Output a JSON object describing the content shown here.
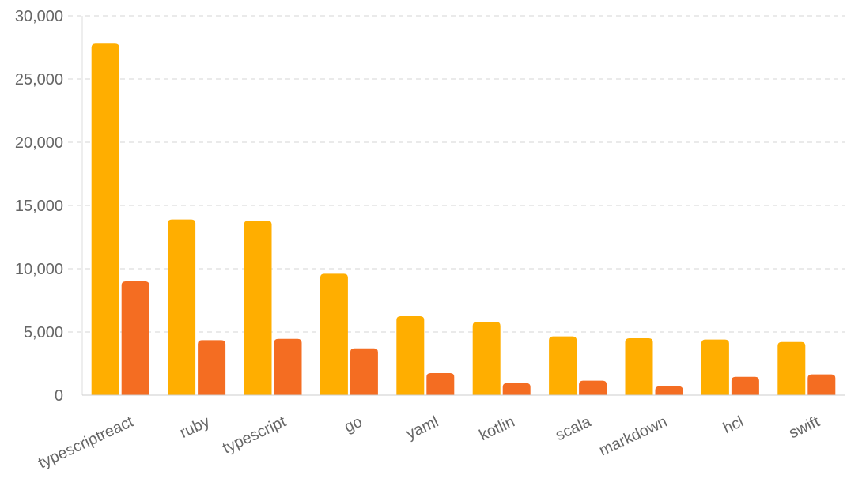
{
  "chart_data": {
    "type": "bar",
    "title": "",
    "xlabel": "",
    "ylabel": "",
    "ylim": [
      0,
      30000
    ],
    "yticks": [
      0,
      5000,
      10000,
      15000,
      20000,
      25000,
      30000
    ],
    "ytick_labels": [
      "0",
      "5,000",
      "10,000",
      "15,000",
      "20,000",
      "25,000",
      "30,000"
    ],
    "grid": true,
    "legend": "none",
    "categories": [
      "typescriptreact",
      "ruby",
      "typescript",
      "go",
      "yaml",
      "kotlin",
      "scala",
      "markdown",
      "hcl",
      "swift"
    ],
    "series": [
      {
        "color": "#FFAE00",
        "values": [
          27800,
          13900,
          13800,
          9600,
          6250,
          5800,
          4650,
          4500,
          4400,
          4200
        ]
      },
      {
        "color": "#F46D22",
        "values": [
          9000,
          4350,
          4450,
          3700,
          1750,
          950,
          1150,
          700,
          1450,
          1650
        ]
      }
    ]
  }
}
